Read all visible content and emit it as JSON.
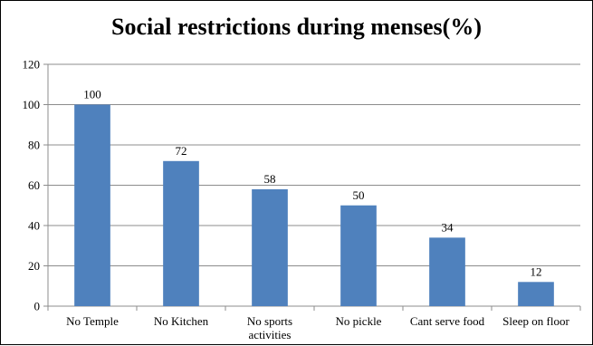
{
  "chart_data": {
    "type": "bar",
    "title": "Social restrictions during menses(%)",
    "xlabel": "",
    "ylabel": "",
    "categories": [
      [
        "No Temple"
      ],
      [
        "No Kitchen"
      ],
      [
        "No sports",
        "activities"
      ],
      [
        "No pickle"
      ],
      [
        "Cant serve food"
      ],
      [
        "Sleep on floor"
      ]
    ],
    "values": [
      100,
      72,
      58,
      50,
      34,
      12
    ],
    "data_labels": [
      "100",
      "72",
      "58",
      "50",
      "34",
      "12"
    ],
    "ylim": [
      0,
      120
    ],
    "yticks": [
      0,
      20,
      40,
      60,
      80,
      100,
      120
    ],
    "grid": true,
    "legend": "none",
    "colors": {
      "bar": "#4f81bd",
      "grid": "#8c8c8c",
      "axis": "#8c8c8c"
    }
  }
}
